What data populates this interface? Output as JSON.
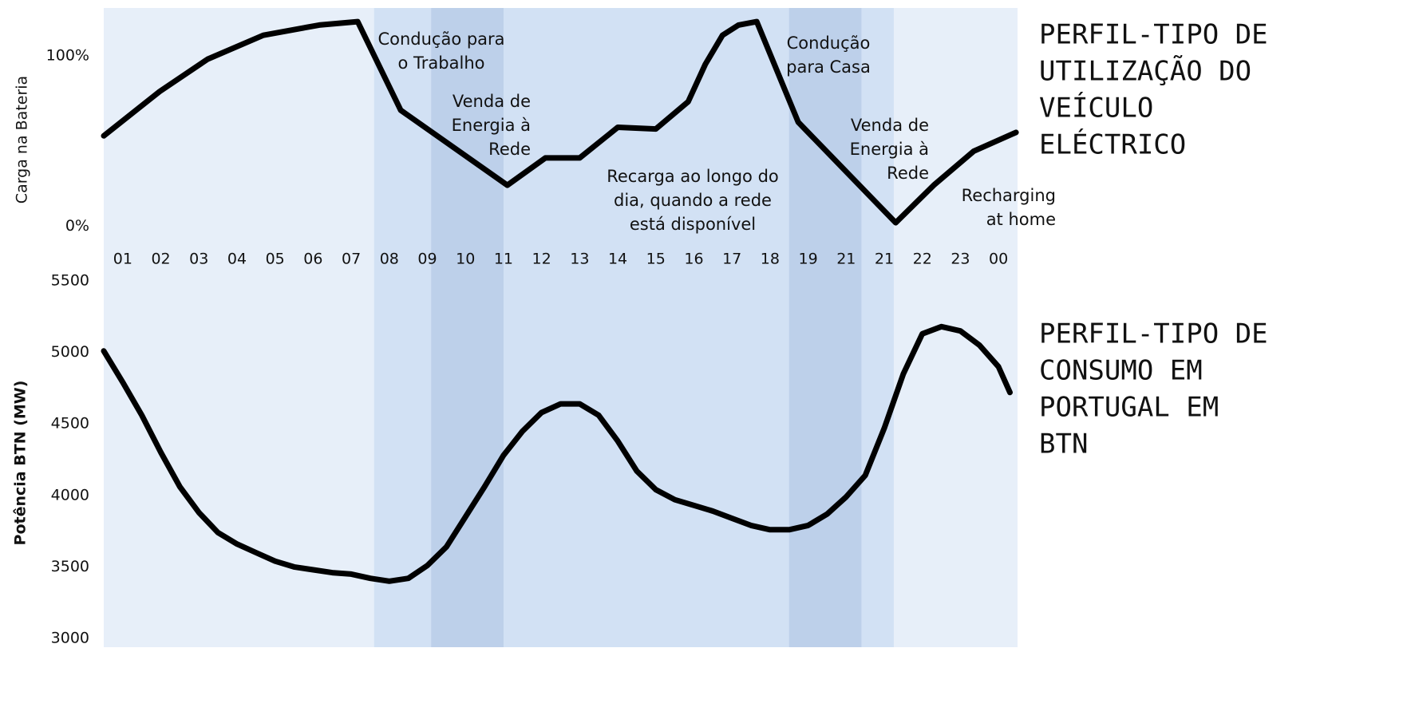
{
  "chart_data": [
    {
      "type": "line",
      "title_lines": [
        "PERFIL-TIPO DE",
        "UTILIZAÇÃO DO",
        "VEÍCULO",
        "ELÉCTRICO"
      ],
      "y_label": "Carga na Bateria",
      "categories": [
        "01",
        "02",
        "03",
        "04",
        "05",
        "06",
        "07",
        "08",
        "09",
        "10",
        "11",
        "12",
        "13",
        "14",
        "15",
        "16",
        "17",
        "18",
        "19",
        "21",
        "21",
        "22",
        "23",
        "00"
      ],
      "x": [
        0,
        1.47,
        2.73,
        4.19,
        5.66,
        6.67,
        7.8,
        10.6,
        11.6,
        12.5,
        13.5,
        14.5,
        15.35,
        15.8,
        16.25,
        16.67,
        17.15,
        18.24,
        20.8,
        21.8,
        22.85,
        23.96
      ],
      "values": [
        53,
        79,
        98,
        112,
        118,
        120,
        68,
        24,
        40,
        40,
        58,
        57,
        73,
        95,
        112,
        118,
        120,
        61,
        2,
        24,
        44,
        55
      ],
      "color": "#000000",
      "xlim": [
        0,
        24
      ],
      "ylim": [
        -5,
        128
      ],
      "yticks": [
        {
          "value": 0,
          "label": "0%"
        },
        {
          "value": 100,
          "label": "100%"
        }
      ],
      "shaded_periods": [
        {
          "start": 0,
          "end": 24,
          "color": "#e7eff9"
        },
        {
          "start": 7.1,
          "end": 20.75,
          "color": "#d2e1f4"
        },
        {
          "start": 8.6,
          "end": 10.5,
          "color": "#bdd0ea"
        },
        {
          "start": 18.0,
          "end": 19.9,
          "color": "#bdd0ea"
        }
      ],
      "annotations": [
        {
          "lines": [
            "Condução para",
            "o Trabalho"
          ]
        },
        {
          "lines": [
            "Venda de",
            "Energia à",
            "Rede"
          ]
        },
        {
          "lines": [
            "Recarga ao longo do",
            "dia, quando a rede",
            "está disponível"
          ]
        },
        {
          "lines": [
            "Condução",
            "para Casa"
          ]
        },
        {
          "lines": [
            "Venda de",
            "Energia à",
            "Rede"
          ]
        },
        {
          "lines": [
            "Recharging",
            "at home"
          ]
        }
      ]
    },
    {
      "type": "line",
      "title_lines": [
        "PERFIL-TIPO DE",
        "CONSUMO EM",
        "PORTUGAL EM",
        "BTN"
      ],
      "y_label": "Potência BTN (MW)",
      "x": [
        0,
        0.5,
        1,
        1.5,
        2,
        2.5,
        3,
        3.5,
        4,
        4.5,
        5,
        5.5,
        6,
        6.5,
        7,
        7.5,
        8,
        8.5,
        9,
        9.5,
        10,
        10.5,
        11,
        11.5,
        12,
        12.5,
        13,
        13.5,
        14,
        14.5,
        15,
        15.5,
        16,
        16.5,
        17,
        17.5,
        18,
        18.5,
        19,
        19.5,
        20,
        20.5,
        21,
        21.5,
        22,
        22.5,
        23,
        23.5,
        23.8
      ],
      "values": [
        5010,
        4790,
        4560,
        4300,
        4060,
        3880,
        3740,
        3660,
        3600,
        3540,
        3500,
        3480,
        3460,
        3450,
        3420,
        3400,
        3420,
        3510,
        3640,
        3850,
        4060,
        4280,
        4450,
        4580,
        4640,
        4640,
        4560,
        4380,
        4170,
        4040,
        3970,
        3930,
        3890,
        3840,
        3790,
        3760,
        3760,
        3790,
        3870,
        3990,
        4140,
        4470,
        4850,
        5130,
        5180,
        5150,
        5050,
        4900,
        4720
      ],
      "color": "#000000",
      "xlim": [
        0,
        24
      ],
      "ylim": [
        3000,
        5500
      ],
      "yticks": [
        3000,
        3500,
        4000,
        4500,
        5000,
        5500
      ]
    }
  ]
}
